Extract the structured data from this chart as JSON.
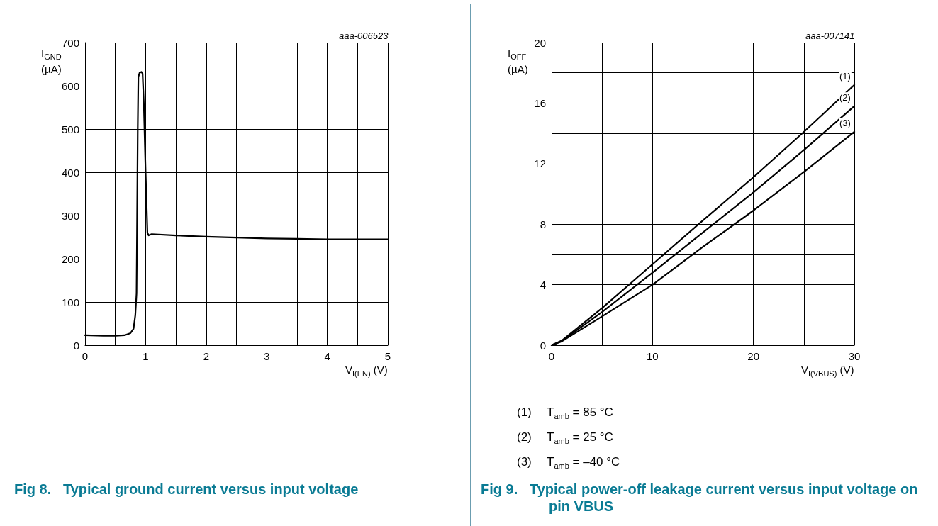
{
  "chart_data": [
    {
      "type": "line",
      "title": "Fig 8.   Typical ground current versus input voltage",
      "xlabel": "V$_{I(EN)}$ (V)",
      "ylabel": "I$_{GND}$ (µA)",
      "annotations": [
        "aaa-006523"
      ],
      "x": [
        0,
        0.3,
        0.5,
        0.65,
        0.75,
        0.8,
        0.83,
        0.85,
        0.86,
        0.87,
        0.88,
        0.9,
        0.93,
        0.95,
        0.97,
        1.0,
        1.03,
        1.05,
        1.1,
        1.5,
        2,
        2.5,
        3,
        3.5,
        4,
        4.5,
        5
      ],
      "series": [
        {
          "color": "#000000",
          "values": [
            23,
            22,
            22,
            23,
            28,
            38,
            70,
            120,
            300,
            500,
            620,
            630,
            632,
            628,
            560,
            400,
            260,
            254,
            257,
            254,
            251,
            249,
            247,
            246,
            245,
            245,
            245
          ]
        }
      ],
      "xlim": [
        0,
        5
      ],
      "xticks": [
        0,
        {
          "value": 0.5,
          "label": null
        },
        1,
        {
          "value": 1.5,
          "label": null
        },
        2,
        {
          "value": 2.5,
          "label": null
        },
        3,
        {
          "value": 3.5,
          "label": null
        },
        4,
        {
          "value": 4.5,
          "label": null
        },
        5
      ],
      "ylim": [
        0,
        700
      ],
      "yticks": [
        0,
        100,
        200,
        300,
        400,
        500,
        600,
        700
      ],
      "grid": true,
      "marker": "none",
      "line_style": "solid"
    },
    {
      "type": "line",
      "title": "Fig 9.   Typical power-off leakage current versus input voltage on pin VBUS",
      "xlabel": "V$_{I(VBUS)}$ (V)",
      "ylabel": "I$_{OFF}$ (µA)",
      "annotations": [
        "aaa-007141",
        "(1)   T$_{amb}$ = 85 °C",
        "(2)   T$_{amb}$ = 25 °C",
        "(3)   T$_{amb}$ = –40 °C"
      ],
      "x": [
        0,
        1,
        5,
        10,
        15,
        20,
        25,
        30
      ],
      "series": [
        {
          "name": "(1)",
          "color": "#000000",
          "values": [
            0,
            0.3,
            2.45,
            5.35,
            8.25,
            11.1,
            14.1,
            17.2
          ]
        },
        {
          "name": "(2)",
          "color": "#000000",
          "values": [
            0,
            0.28,
            2.2,
            4.8,
            7.45,
            10.1,
            12.9,
            15.8
          ]
        },
        {
          "name": "(3)",
          "color": "#000000",
          "values": [
            0,
            0.25,
            1.9,
            4.0,
            6.5,
            8.9,
            11.45,
            14.1
          ]
        }
      ],
      "xlim": [
        0,
        30
      ],
      "xticks": [
        0,
        {
          "value": 5,
          "label": null
        },
        10,
        {
          "value": 15,
          "label": null
        },
        20,
        {
          "value": 25,
          "label": null
        },
        30
      ],
      "ylim": [
        0,
        20
      ],
      "yticks": [
        0,
        {
          "value": 2,
          "label": null
        },
        4,
        {
          "value": 6,
          "label": null
        },
        8,
        {
          "value": 10,
          "label": null
        },
        12,
        {
          "value": 14,
          "label": null
        },
        16,
        {
          "value": 18,
          "label": null
        },
        20
      ],
      "grid": true,
      "marker": "none",
      "line_style": "solid"
    }
  ]
}
